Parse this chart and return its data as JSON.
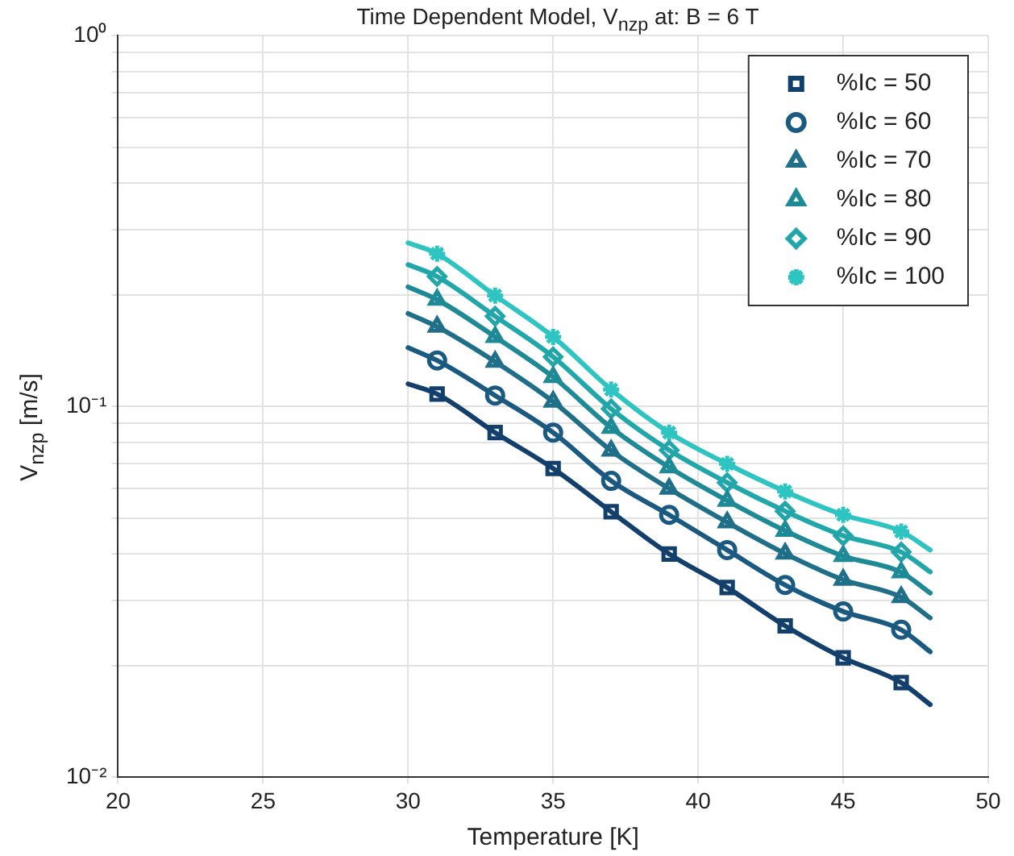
{
  "chart_data": {
    "type": "line",
    "title": "Time Dependent Model, V$_{nzp}$ at: B = 6 T",
    "xlabel": "Temperature [K]",
    "ylabel": "V$_{nzp}$ [m/s]",
    "log": "y",
    "grid": true,
    "legend": "top right",
    "xlim": [
      20,
      50
    ],
    "xticks": [
      20,
      25,
      30,
      35,
      40,
      45,
      50
    ],
    "ylim": [
      0.01,
      1
    ],
    "yticks": [
      {
        "value": 0.01,
        "label": "10⁻²"
      },
      {
        "value": 0.02,
        "label": null
      },
      {
        "value": 0.03,
        "label": null
      },
      {
        "value": 0.04,
        "label": null
      },
      {
        "value": 0.05,
        "label": null
      },
      {
        "value": 0.06,
        "label": null
      },
      {
        "value": 0.07,
        "label": null
      },
      {
        "value": 0.08,
        "label": null
      },
      {
        "value": 0.09,
        "label": null
      },
      {
        "value": 0.1,
        "label": "10⁻¹"
      },
      {
        "value": 0.2,
        "label": null
      },
      {
        "value": 0.3,
        "label": null
      },
      {
        "value": 0.4,
        "label": null
      },
      {
        "value": 0.5,
        "label": null
      },
      {
        "value": 0.6,
        "label": null
      },
      {
        "value": 0.7,
        "label": null
      },
      {
        "value": 0.8,
        "label": null
      },
      {
        "value": 0.9,
        "label": null
      },
      {
        "value": 1,
        "label": "10⁰"
      }
    ],
    "series": [
      {
        "type": "line",
        "marker": "none",
        "color": "#123f6b",
        "x": [
          30,
          31,
          33,
          35,
          37,
          39,
          41,
          43,
          45,
          47,
          48
        ],
        "values": [
          0.115,
          0.108,
          0.085,
          0.068,
          0.052,
          0.04,
          0.0325,
          0.0256,
          0.021,
          0.018,
          0.0157
        ]
      },
      {
        "type": "line",
        "marker": "none",
        "color": "#1a5a80",
        "x": [
          30,
          31,
          33,
          35,
          37,
          39,
          41,
          43,
          45,
          47,
          48
        ],
        "values": [
          0.144,
          0.133,
          0.107,
          0.085,
          0.063,
          0.051,
          0.041,
          0.033,
          0.028,
          0.025,
          0.0218
        ]
      },
      {
        "type": "line",
        "marker": "none",
        "color": "#1f6f88",
        "x": [
          30,
          31,
          33,
          35,
          37,
          39,
          41,
          43,
          45,
          47,
          48
        ],
        "values": [
          0.178,
          0.164,
          0.132,
          0.103,
          0.076,
          0.06,
          0.0487,
          0.0401,
          0.0341,
          0.0306,
          0.0269
        ]
      },
      {
        "type": "line",
        "marker": "none",
        "color": "#1d8a95",
        "x": [
          30,
          31,
          33,
          35,
          37,
          39,
          41,
          43,
          45,
          47,
          48
        ],
        "values": [
          0.21,
          0.194,
          0.154,
          0.12,
          0.0876,
          0.0685,
          0.0557,
          0.0462,
          0.0395,
          0.0357,
          0.0314
        ]
      },
      {
        "type": "line",
        "marker": "none",
        "color": "#21a6aa",
        "x": [
          30,
          31,
          33,
          35,
          37,
          39,
          41,
          43,
          45,
          47,
          48
        ],
        "values": [
          0.241,
          0.224,
          0.175,
          0.136,
          0.0985,
          0.0762,
          0.0623,
          0.0522,
          0.0448,
          0.0405,
          0.0358
        ]
      },
      {
        "type": "line",
        "marker": "none",
        "color": "#2ec4c2",
        "x": [
          30,
          31,
          33,
          35,
          37,
          39,
          41,
          43,
          45,
          47,
          48
        ],
        "values": [
          0.276,
          0.258,
          0.199,
          0.154,
          0.111,
          0.085,
          0.07,
          0.059,
          0.051,
          0.046,
          0.041
        ]
      },
      {
        "type": "scatter",
        "name": "%Ic = 50",
        "marker": "square",
        "color": "#123f6b",
        "x": [
          31,
          33,
          35,
          37,
          39,
          41,
          43,
          45,
          47
        ],
        "values": [
          0.108,
          0.085,
          0.068,
          0.052,
          0.04,
          0.0325,
          0.0256,
          0.021,
          0.018
        ]
      },
      {
        "type": "scatter",
        "name": "%Ic = 60",
        "marker": "circle",
        "color": "#1a5a80",
        "x": [
          31,
          33,
          35,
          37,
          39,
          41,
          43,
          45,
          47
        ],
        "values": [
          0.133,
          0.107,
          0.085,
          0.063,
          0.051,
          0.041,
          0.033,
          0.028,
          0.025
        ]
      },
      {
        "type": "scatter",
        "name": "%Ic = 70",
        "marker": "triangle",
        "color": "#1f6f88",
        "x": [
          31,
          33,
          35,
          37,
          39,
          41,
          43,
          45,
          47
        ],
        "values": [
          0.164,
          0.132,
          0.103,
          0.076,
          0.06,
          0.0487,
          0.0401,
          0.0341,
          0.0306
        ]
      },
      {
        "type": "scatter",
        "name": "%Ic = 80",
        "marker": "triangle",
        "color": "#1d8a95",
        "x": [
          31,
          33,
          35,
          37,
          39,
          41,
          43,
          45,
          47
        ],
        "values": [
          0.194,
          0.154,
          0.12,
          0.0876,
          0.0685,
          0.0557,
          0.0462,
          0.0395,
          0.0357
        ]
      },
      {
        "type": "scatter",
        "name": "%Ic = 90",
        "marker": "diamond",
        "color": "#21a6aa",
        "x": [
          31,
          33,
          35,
          37,
          39,
          41,
          43,
          45,
          47
        ],
        "values": [
          0.224,
          0.175,
          0.136,
          0.0985,
          0.0762,
          0.0623,
          0.0522,
          0.0448,
          0.0405
        ]
      },
      {
        "type": "scatter",
        "name": "%Ic = 100",
        "marker": "cross",
        "color": "#2ec4c2",
        "x": [
          31,
          33,
          35,
          37,
          39,
          41,
          43,
          45,
          47
        ],
        "values": [
          0.258,
          0.199,
          0.154,
          0.111,
          0.085,
          0.07,
          0.059,
          0.051,
          0.046
        ]
      }
    ]
  }
}
